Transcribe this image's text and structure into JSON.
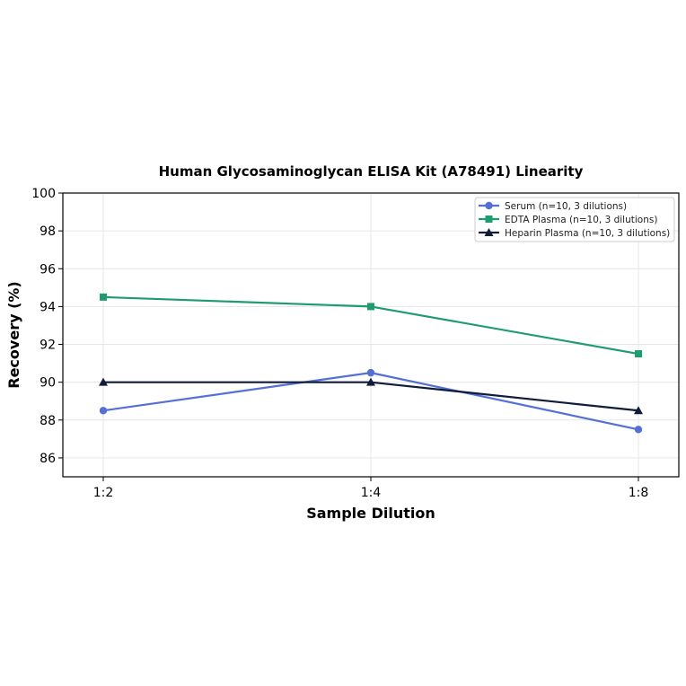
{
  "chart_data": {
    "type": "line",
    "title": "Human Glycosaminoglycan ELISA Kit (A78491) Linearity",
    "xlabel": "Sample Dilution",
    "ylabel": "Recovery (%)",
    "categories": [
      "1:2",
      "1:4",
      "1:8"
    ],
    "ylim": [
      85,
      100
    ],
    "yticks": [
      86,
      88,
      90,
      92,
      94,
      96,
      98,
      100
    ],
    "grid": true,
    "legend_position": "top-right",
    "series": [
      {
        "name": "Serum (n=10, 3 dilutions)",
        "values": [
          88.5,
          90.5,
          87.5
        ],
        "color": "#5470d6",
        "marker": "circle"
      },
      {
        "name": "EDTA Plasma (n=10, 3 dilutions)",
        "values": [
          94.5,
          94.0,
          91.5
        ],
        "color": "#1f9c6e",
        "marker": "square"
      },
      {
        "name": "Heparin Plasma (n=10, 3 dilutions)",
        "values": [
          90.0,
          90.0,
          88.5
        ],
        "color": "#111c3a",
        "marker": "triangle"
      }
    ]
  }
}
